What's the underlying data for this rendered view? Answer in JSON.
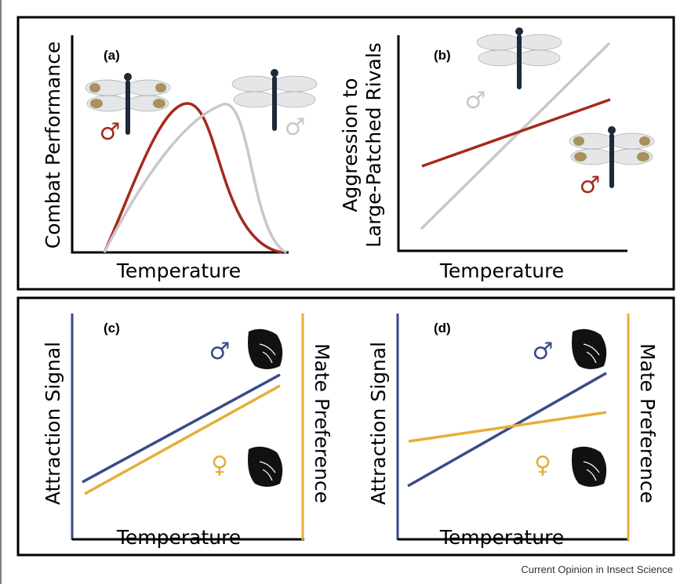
{
  "panels": [
    {
      "label": "(a)",
      "y_axis_title": [
        "Combat Performance"
      ],
      "x_axis_title": "Temperature",
      "symbols": [
        "♂",
        "♂"
      ]
    },
    {
      "label": "(b)",
      "y_axis_title": [
        "Aggression to",
        "Large-Patched Rivals"
      ],
      "x_axis_title": "Temperature",
      "symbols": [
        "♂",
        "♂"
      ]
    },
    {
      "label": "(c)",
      "y_axis_title": [
        "Attraction Signal"
      ],
      "y2_axis_title": "Mate Preference",
      "x_axis_title": "Temperature",
      "symbols": [
        "♂",
        "♀"
      ]
    },
    {
      "label": "(d)",
      "y_axis_title": [
        "Attraction Signal"
      ],
      "y2_axis_title": "Mate Preference",
      "x_axis_title": "Temperature",
      "symbols": [
        "♂",
        "♀"
      ]
    }
  ],
  "footer": "Current Opinion in Insect Science"
}
